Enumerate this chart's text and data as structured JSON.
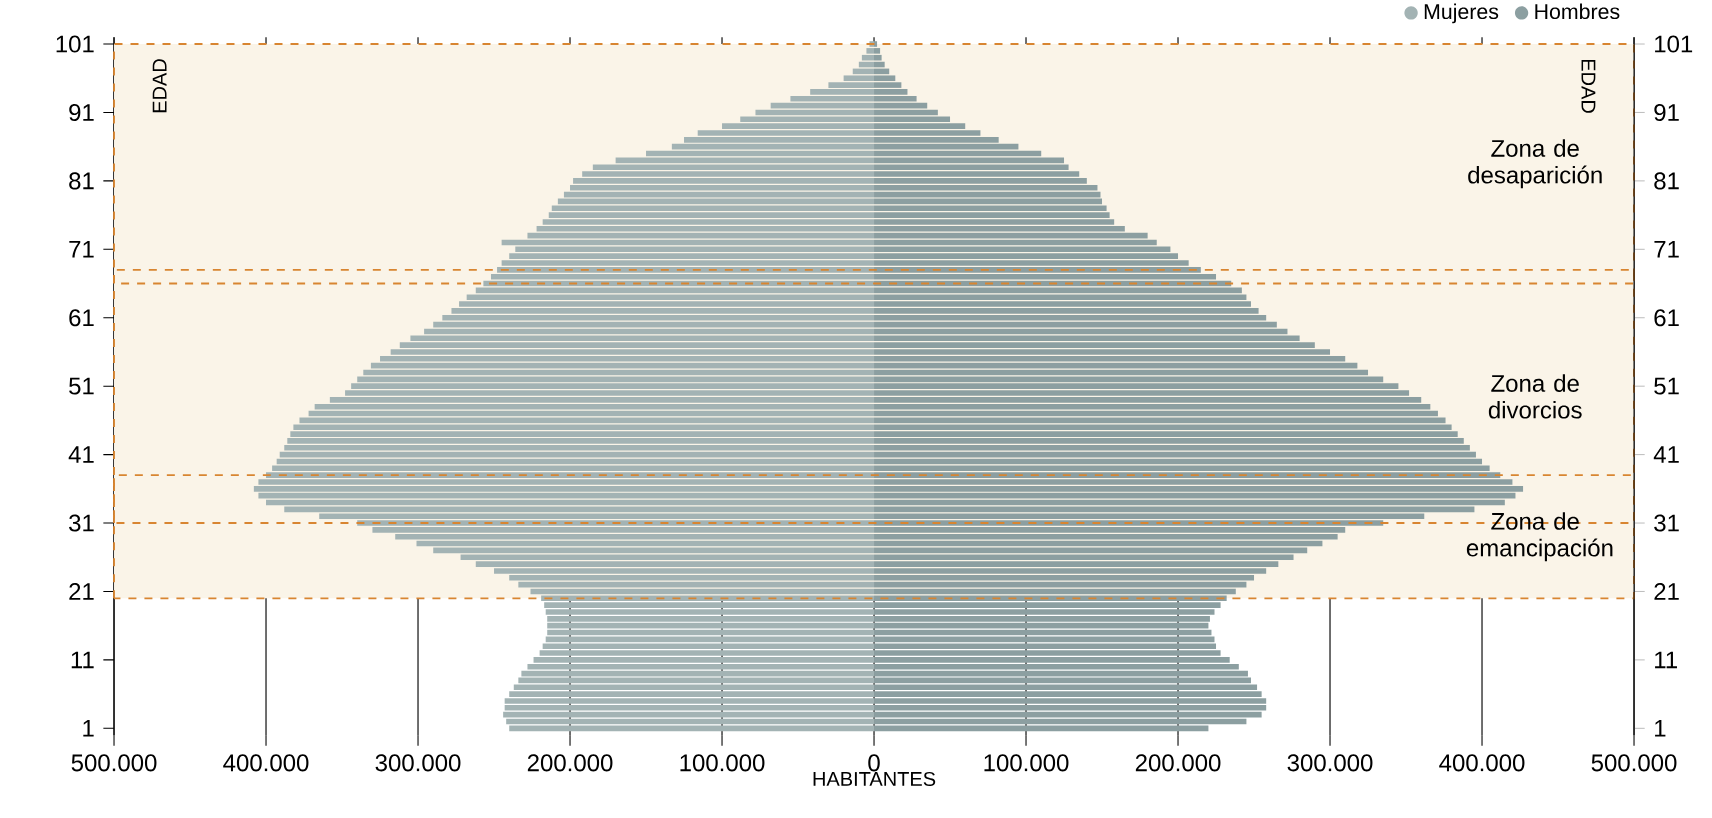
{
  "chart_data": {
    "type": "bar",
    "orientation": "horizontal",
    "x": [
      1,
      2,
      3,
      4,
      5,
      6,
      7,
      8,
      9,
      10,
      11,
      12,
      13,
      14,
      15,
      16,
      17,
      18,
      19,
      20,
      21,
      22,
      23,
      24,
      25,
      26,
      27,
      28,
      29,
      30,
      31,
      32,
      33,
      34,
      35,
      36,
      37,
      38,
      39,
      40,
      41,
      42,
      43,
      44,
      45,
      46,
      47,
      48,
      49,
      50,
      51,
      52,
      53,
      54,
      55,
      56,
      57,
      58,
      59,
      60,
      61,
      62,
      63,
      64,
      65,
      66,
      67,
      68,
      69,
      70,
      71,
      72,
      73,
      74,
      75,
      76,
      77,
      78,
      79,
      80,
      81,
      82,
      83,
      84,
      85,
      86,
      87,
      88,
      89,
      90,
      91,
      92,
      93,
      94,
      95,
      96,
      97,
      98,
      99,
      100,
      101
    ],
    "series": [
      {
        "name": "Mujeres",
        "color": "#a3b3b4",
        "values": [
          -240000,
          -242000,
          -244000,
          -243000,
          -243000,
          -240000,
          -237000,
          -234000,
          -232000,
          -228000,
          -224000,
          -220000,
          -218000,
          -216000,
          -215000,
          -215000,
          -215000,
          -216000,
          -217000,
          -219000,
          -226000,
          -234000,
          -240000,
          -250000,
          -262000,
          -272000,
          -290000,
          -301000,
          -315000,
          -330000,
          -340000,
          -365000,
          -388000,
          -400000,
          -405000,
          -408000,
          -405000,
          -400000,
          -396000,
          -393000,
          -391000,
          -388000,
          -386000,
          -384000,
          -382000,
          -378000,
          -372000,
          -368000,
          -358000,
          -348000,
          -344000,
          -340000,
          -336000,
          -331000,
          -325000,
          -318000,
          -312000,
          -305000,
          -296000,
          -290000,
          -284000,
          -278000,
          -273000,
          -268000,
          -262000,
          -257000,
          -252000,
          -248000,
          -245000,
          -240000,
          -236000,
          -245000,
          -228000,
          -222000,
          -218000,
          -214000,
          -212000,
          -208000,
          -204000,
          -200000,
          -198000,
          -192000,
          -185000,
          -170000,
          -150000,
          -133000,
          -125000,
          -116000,
          -100000,
          -88000,
          -78000,
          -68000,
          -55000,
          -42000,
          -30000,
          -20000,
          -14000,
          -10000,
          -8000,
          -5000,
          -3000
        ]
      },
      {
        "name": "Hombres",
        "color": "#8c9fa1",
        "values": [
          220000,
          245000,
          255000,
          258000,
          258000,
          255000,
          252000,
          248000,
          246000,
          240000,
          234000,
          228000,
          225000,
          224000,
          222000,
          220000,
          221000,
          224000,
          228000,
          232000,
          238000,
          245000,
          250000,
          258000,
          266000,
          276000,
          285000,
          295000,
          305000,
          310000,
          335000,
          362000,
          395000,
          415000,
          422000,
          427000,
          420000,
          412000,
          405000,
          400000,
          396000,
          392000,
          388000,
          384000,
          380000,
          376000,
          371000,
          366000,
          360000,
          352000,
          345000,
          335000,
          325000,
          318000,
          310000,
          300000,
          290000,
          280000,
          272000,
          265000,
          258000,
          253000,
          248000,
          245000,
          242000,
          235000,
          225000,
          215000,
          207000,
          200000,
          195000,
          186000,
          180000,
          165000,
          158000,
          155000,
          153000,
          150000,
          149000,
          147000,
          140000,
          135000,
          128000,
          125000,
          110000,
          95000,
          82000,
          70000,
          60000,
          50000,
          42000,
          35000,
          28000,
          22000,
          18000,
          14000,
          10000,
          7000,
          5000,
          4000,
          2000
        ]
      }
    ],
    "xlim": [
      -500000,
      500000
    ],
    "xticks": [
      {
        "value": -500000,
        "label": "500.000"
      },
      {
        "value": -400000,
        "label": "400.000"
      },
      {
        "value": -300000,
        "label": "300.000"
      },
      {
        "value": -200000,
        "label": "200.000"
      },
      {
        "value": -100000,
        "label": "100.000"
      },
      0,
      {
        "value": 100000,
        "label": "100.000"
      },
      {
        "value": 200000,
        "label": "200.000"
      },
      {
        "value": 300000,
        "label": "300.000"
      },
      {
        "value": 400000,
        "label": "400.000"
      },
      {
        "value": 500000,
        "label": "500.000"
      }
    ],
    "ylim": [
      0,
      102
    ],
    "yticks": [
      1,
      11,
      21,
      31,
      41,
      51,
      61,
      71,
      81,
      91,
      101
    ],
    "y2lim": [
      0,
      102
    ],
    "y2ticks": [
      1,
      11,
      21,
      31,
      41,
      51,
      61,
      71,
      81,
      91,
      101
    ],
    "xlabel": "HABITANTES",
    "ylabel": "EDAD",
    "y2label": "EDAD",
    "bands": [
      {
        "axis": "y",
        "from": 66,
        "to": 101,
        "label": "Zona de desaparición",
        "color": "#faf4e8"
      },
      {
        "axis": "y",
        "from": 31,
        "to": 68,
        "label": "Zona de divorcios",
        "color": "#faf4e8"
      },
      {
        "axis": "y",
        "from": 20,
        "to": 38,
        "label": "Zona de emancipación",
        "color": "#faf4e8"
      }
    ],
    "grid": "x",
    "legend": "top right",
    "stacked": true
  }
}
